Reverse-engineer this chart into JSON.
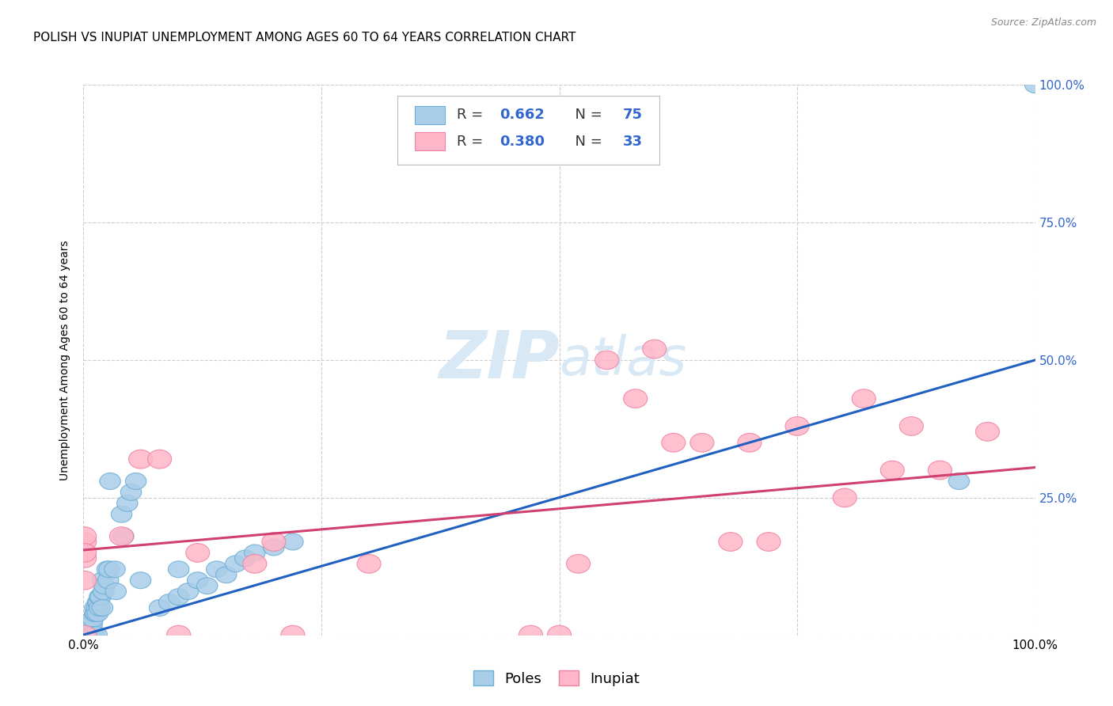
{
  "title": "POLISH VS INUPIAT UNEMPLOYMENT AMONG AGES 60 TO 64 YEARS CORRELATION CHART",
  "source": "Source: ZipAtlas.com",
  "ylabel": "Unemployment Among Ages 60 to 64 years",
  "xlim": [
    0,
    1.0
  ],
  "ylim": [
    0,
    1.0
  ],
  "xticks": [
    0.0,
    1.0
  ],
  "xtick_labels": [
    "0.0%",
    "100.0%"
  ],
  "yticks": [
    0.0,
    0.25,
    0.5,
    0.75,
    1.0
  ],
  "ytick_right_labels": [
    "",
    "25.0%",
    "50.0%",
    "75.0%",
    "100.0%"
  ],
  "grid_ticks": [
    0.0,
    0.25,
    0.5,
    0.75,
    1.0
  ],
  "poles_color": "#aacde8",
  "poles_edge_color": "#6baed6",
  "inupiat_color": "#ffb6c8",
  "inupiat_edge_color": "#f080a0",
  "poles_trend_color": "#2060c0",
  "inupiat_trend_color": "#d04070",
  "poles_R": "0.662",
  "poles_N": "75",
  "inupiat_R": "0.380",
  "inupiat_N": "33",
  "legend_RN_color": "#3366cc",
  "legend_text_color": "#222222",
  "right_tick_color": "#3366cc",
  "watermark_zip": "ZIP",
  "watermark_atlas": "atlas",
  "watermark_color": "#d8e8f5",
  "title_fontsize": 11,
  "axis_label_fontsize": 10,
  "tick_fontsize": 11,
  "grid_color": "#cccccc",
  "bg_color": "#ffffff",
  "poles_scatter_x": [
    0.001,
    0.001,
    0.001,
    0.001,
    0.001,
    0.001,
    0.001,
    0.001,
    0.001,
    0.001,
    0.003,
    0.003,
    0.003,
    0.004,
    0.004,
    0.005,
    0.005,
    0.005,
    0.005,
    0.006,
    0.006,
    0.007,
    0.007,
    0.008,
    0.008,
    0.009,
    0.009,
    0.01,
    0.01,
    0.01,
    0.01,
    0.011,
    0.012,
    0.012,
    0.013,
    0.014,
    0.014,
    0.015,
    0.015,
    0.016,
    0.017,
    0.017,
    0.018,
    0.02,
    0.02,
    0.021,
    0.022,
    0.025,
    0.026,
    0.027,
    0.028,
    0.033,
    0.034,
    0.04,
    0.042,
    0.046,
    0.05,
    0.055,
    0.06,
    0.08,
    0.09,
    0.1,
    0.1,
    0.11,
    0.12,
    0.13,
    0.14,
    0.15,
    0.16,
    0.17,
    0.18,
    0.2,
    0.22,
    0.92,
    1.0
  ],
  "poles_scatter_y": [
    0.001,
    0.001,
    0.001,
    0.001,
    0.001,
    0.001,
    0.001,
    0.001,
    0.001,
    0.001,
    0.001,
    0.001,
    0.001,
    0.001,
    0.001,
    0.001,
    0.001,
    0.001,
    0.001,
    0.001,
    0.02,
    0.001,
    0.001,
    0.001,
    0.02,
    0.001,
    0.02,
    0.001,
    0.001,
    0.001,
    0.03,
    0.001,
    0.04,
    0.05,
    0.04,
    0.001,
    0.05,
    0.04,
    0.06,
    0.06,
    0.05,
    0.07,
    0.07,
    0.05,
    0.1,
    0.08,
    0.09,
    0.12,
    0.1,
    0.12,
    0.28,
    0.12,
    0.08,
    0.22,
    0.18,
    0.24,
    0.26,
    0.28,
    0.1,
    0.05,
    0.06,
    0.07,
    0.12,
    0.08,
    0.1,
    0.09,
    0.12,
    0.11,
    0.13,
    0.14,
    0.15,
    0.16,
    0.17,
    0.28,
    1.0
  ],
  "inupiat_scatter_x": [
    0.001,
    0.001,
    0.001,
    0.001,
    0.001,
    0.001,
    0.04,
    0.06,
    0.08,
    0.1,
    0.12,
    0.18,
    0.2,
    0.22,
    0.3,
    0.47,
    0.5,
    0.52,
    0.55,
    0.58,
    0.6,
    0.62,
    0.65,
    0.68,
    0.7,
    0.72,
    0.75,
    0.8,
    0.82,
    0.85,
    0.87,
    0.9,
    0.95
  ],
  "inupiat_scatter_y": [
    0.17,
    0.14,
    0.1,
    0.18,
    0.15,
    0.001,
    0.18,
    0.32,
    0.32,
    0.001,
    0.15,
    0.13,
    0.17,
    0.001,
    0.13,
    0.001,
    0.001,
    0.13,
    0.5,
    0.43,
    0.52,
    0.35,
    0.35,
    0.17,
    0.35,
    0.17,
    0.38,
    0.25,
    0.43,
    0.3,
    0.38,
    0.3,
    0.37
  ],
  "poles_trend": [
    0.0,
    0.001,
    1.0,
    0.5
  ],
  "inupiat_trend": [
    0.0,
    0.155,
    1.0,
    0.305
  ]
}
